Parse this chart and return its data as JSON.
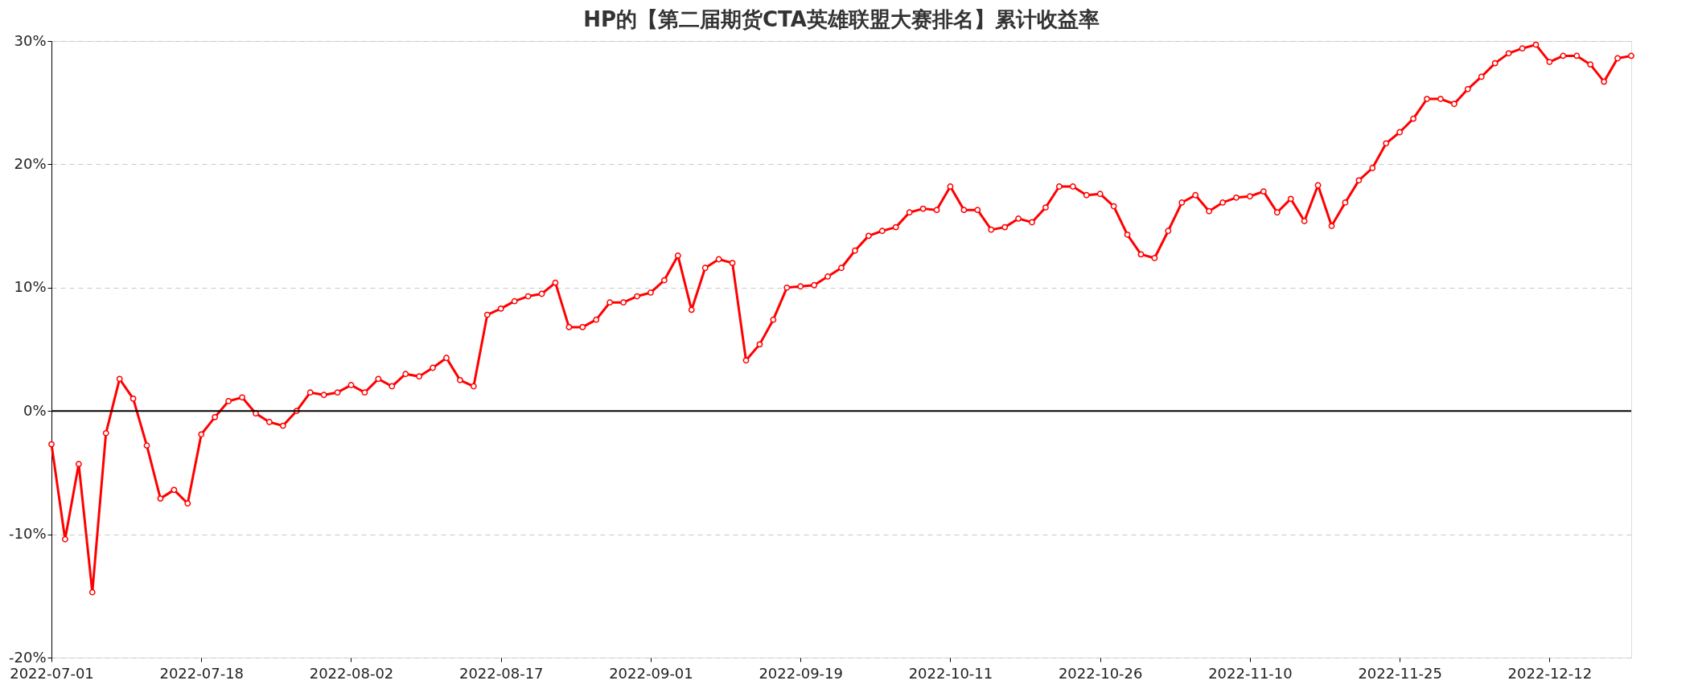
{
  "chart_data": {
    "type": "line",
    "title": "HP的【第二届期货CTA英雄联盟大赛排名】累计收益率",
    "categories": [
      "2022-07-01",
      null,
      null,
      null,
      null,
      null,
      null,
      null,
      null,
      null,
      null,
      "2022-07-18",
      null,
      null,
      null,
      null,
      null,
      null,
      null,
      null,
      null,
      null,
      "2022-08-02",
      null,
      null,
      null,
      null,
      null,
      null,
      null,
      null,
      null,
      null,
      "2022-08-17",
      null,
      null,
      null,
      null,
      null,
      null,
      null,
      null,
      null,
      null,
      "2022-09-01",
      null,
      null,
      null,
      null,
      null,
      null,
      null,
      null,
      null,
      null,
      "2022-09-19",
      null,
      null,
      null,
      null,
      null,
      null,
      null,
      null,
      null,
      null,
      "2022-10-11",
      null,
      null,
      null,
      null,
      null,
      null,
      null,
      null,
      null,
      null,
      "2022-10-26",
      null,
      null,
      null,
      null,
      null,
      null,
      null,
      null,
      null,
      null,
      "2022-11-10",
      null,
      null,
      null,
      null,
      null,
      null,
      null,
      null,
      null,
      null,
      "2022-11-25",
      null,
      null,
      null,
      null,
      null,
      null,
      null,
      null,
      null,
      null,
      "2022-12-12",
      null,
      null,
      null,
      null,
      null,
      null
    ],
    "series": [
      {
        "color": "#ff0000",
        "values": [
          -2.7,
          -10.4,
          -4.3,
          -14.7,
          -1.8,
          2.6,
          1.0,
          -2.8,
          -7.1,
          -6.4,
          -7.5,
          -1.9,
          -0.5,
          0.8,
          1.1,
          -0.2,
          -0.9,
          -1.2,
          0.0,
          1.5,
          1.3,
          1.5,
          2.1,
          1.5,
          2.6,
          2.0,
          3.0,
          2.8,
          3.5,
          4.3,
          2.5,
          2.0,
          7.8,
          8.3,
          8.9,
          9.3,
          9.5,
          10.4,
          6.8,
          6.8,
          7.4,
          8.8,
          8.8,
          9.3,
          9.6,
          10.6,
          12.6,
          8.2,
          11.6,
          12.3,
          12.0,
          4.1,
          5.4,
          7.4,
          10.0,
          10.1,
          10.2,
          10.9,
          11.6,
          13.0,
          14.2,
          14.6,
          14.9,
          16.1,
          16.4,
          16.3,
          18.2,
          16.3,
          16.3,
          14.7,
          14.9,
          15.6,
          15.3,
          16.5,
          18.2,
          18.2,
          17.5,
          17.6,
          16.6,
          14.3,
          12.7,
          12.4,
          14.6,
          16.9,
          17.5,
          16.2,
          16.9,
          17.3,
          17.4,
          17.8,
          16.1,
          17.2,
          15.4,
          18.3,
          15.0,
          16.9,
          18.7,
          19.7,
          21.7,
          22.6,
          23.7,
          25.3,
          25.3,
          24.9,
          26.1,
          27.1,
          28.2,
          29.0,
          29.4,
          29.7,
          28.3,
          28.8,
          28.8,
          28.1,
          26.7,
          28.6,
          28.8
        ]
      }
    ],
    "ylim": [
      -20,
      30
    ],
    "yticks": [
      {
        "value": -20,
        "label": "-20%"
      },
      {
        "value": -10,
        "label": "-10%"
      },
      {
        "value": 0,
        "label": "0%"
      },
      {
        "value": 10,
        "label": "10%"
      },
      {
        "value": 20,
        "label": "20%"
      },
      {
        "value": 30,
        "label": "30%"
      }
    ],
    "grid": "y",
    "marker": "circle",
    "line_style": "solid",
    "ref_lines": [
      {
        "axis": "y",
        "value": 0,
        "color": "#000000",
        "line_style": "solid"
      }
    ]
  }
}
